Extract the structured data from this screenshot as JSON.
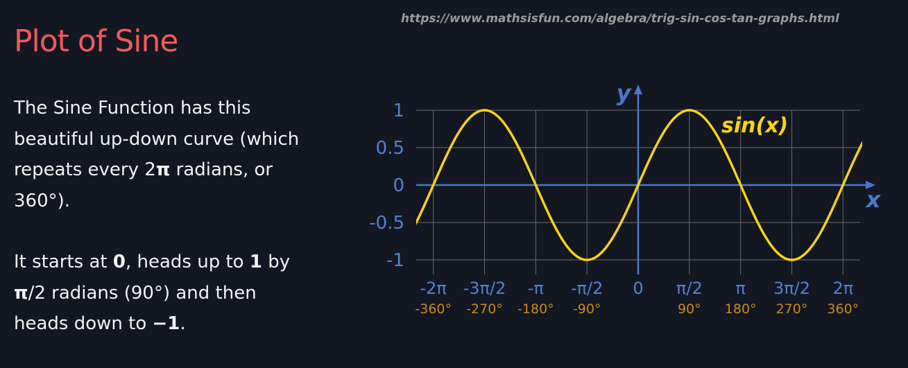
{
  "source_url": "https://www.mathsisfun.com/algebra/trig-sin-cos-tan-graphs.html",
  "title": "Plot of Sine",
  "paragraph1": {
    "line1": "The Sine Function has this",
    "line2": "beautiful up-down curve (which",
    "line3_a": "repeats every 2",
    "line3_pi": "π",
    "line3_b": " radians, or",
    "line4": "360°)."
  },
  "paragraph2": {
    "line1_a": "It starts at ",
    "line1_zero": "0",
    "line1_b": ", heads up to ",
    "line1_one": "1",
    "line1_c": " by",
    "line2_pi": "π",
    "line2_b": "/2 radians (90°) and then",
    "line3_a": "heads down to ",
    "line3_neg": "−1",
    "line3_b": "."
  },
  "colors": {
    "background": "#131722",
    "title": "#f05a5a",
    "curve": "#f7d21a",
    "axis": "#4a78c8",
    "tick_label": "#4f82d4",
    "degree_label": "#c98a1e",
    "grid": "#6b6b6b"
  },
  "chart_data": {
    "type": "line",
    "function": "sin(x)",
    "series": [
      {
        "name": "sin(x)",
        "x": [
          -7.0686,
          -6.2832,
          -5.4978,
          -4.7124,
          -3.927,
          -3.1416,
          -2.3562,
          -1.5708,
          -0.7854,
          0,
          0.7854,
          1.5708,
          2.3562,
          3.1416,
          3.927,
          4.7124,
          5.4978,
          6.2832,
          7.0686
        ],
        "y": [
          -0.707,
          0,
          0.707,
          1,
          0.707,
          0,
          -0.707,
          -1,
          -0.707,
          0,
          0.707,
          1,
          0.707,
          0,
          -0.707,
          -1,
          -0.707,
          0,
          0.707
        ]
      }
    ],
    "xlim": [
      -7.0686,
      7.0686
    ],
    "ylim": [
      -1,
      1
    ],
    "x_ticks": [
      {
        "value": -6.2832,
        "label": "-2π",
        "deg": "-360°"
      },
      {
        "value": -4.7124,
        "label": "-3π/2",
        "deg": "-270°"
      },
      {
        "value": -3.1416,
        "label": "-π",
        "deg": "-180°"
      },
      {
        "value": -1.5708,
        "label": "-π/2",
        "deg": "-90°"
      },
      {
        "value": 0,
        "label": "0",
        "deg": ""
      },
      {
        "value": 1.5708,
        "label": "π/2",
        "deg": "90°"
      },
      {
        "value": 3.1416,
        "label": "π",
        "deg": "180°"
      },
      {
        "value": 4.7124,
        "label": "3π/2",
        "deg": "270°"
      },
      {
        "value": 6.2832,
        "label": "2π",
        "deg": "360°"
      }
    ],
    "y_ticks": [
      {
        "value": 1,
        "label": "1"
      },
      {
        "value": 0.5,
        "label": "0.5"
      },
      {
        "value": 0,
        "label": "0"
      },
      {
        "value": -0.5,
        "label": "-0.5"
      },
      {
        "value": -1,
        "label": "-1"
      }
    ],
    "xlabel": "x",
    "ylabel": "y",
    "curve_label": "sin(x)",
    "grid": true
  }
}
